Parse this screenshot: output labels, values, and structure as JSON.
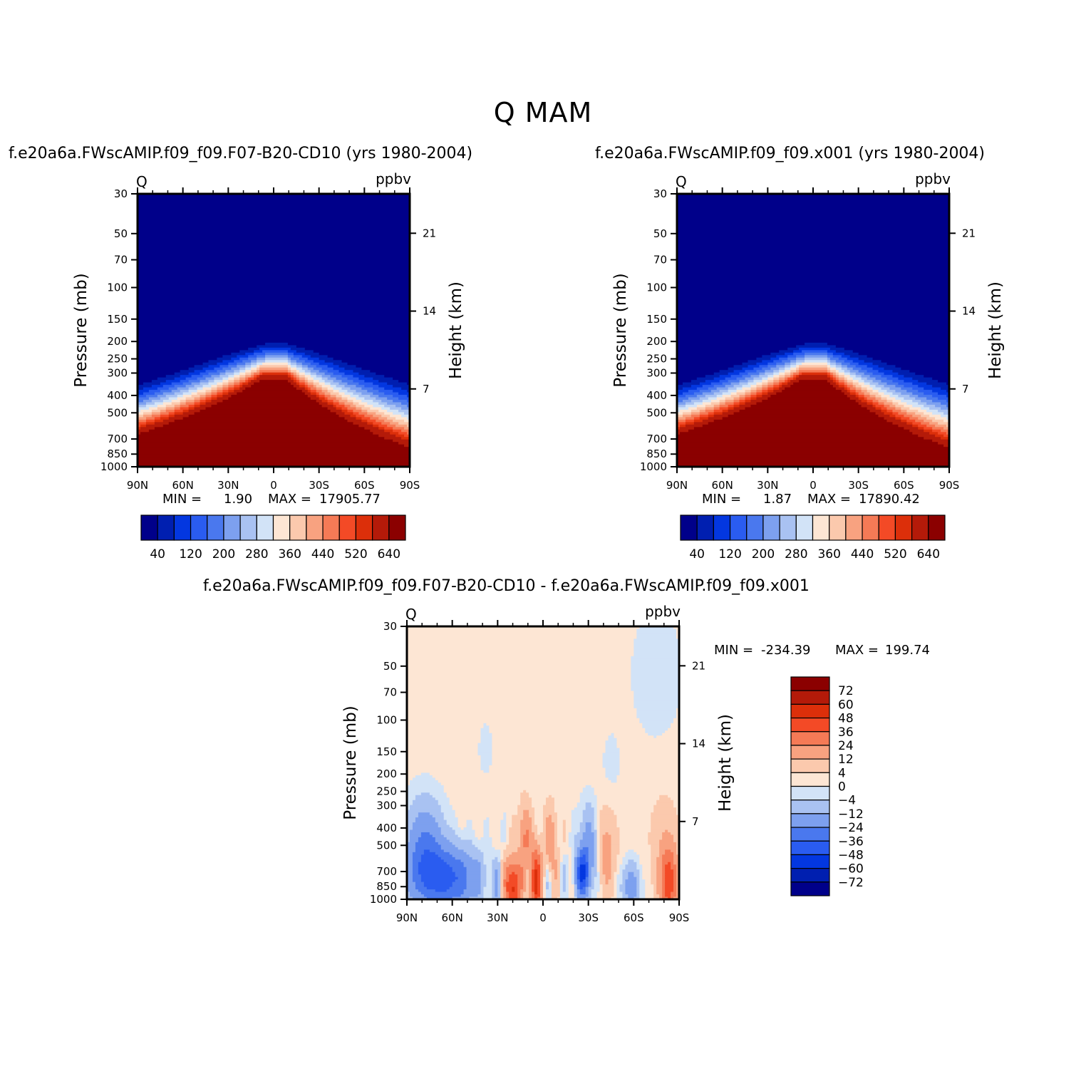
{
  "figure": {
    "title": "Q  MAM"
  },
  "palettes": {
    "absolute": [
      "#00008a",
      "#001fb0",
      "#0337e0",
      "#2a5cf0",
      "#4a78ee",
      "#7da0ef",
      "#a9c2f2",
      "#d2e3f7",
      "#fde6d4",
      "#fbc9ad",
      "#f8a280",
      "#f57a56",
      "#f34a26",
      "#dc2f0a",
      "#b41a09",
      "#8b0000"
    ],
    "difference": [
      "#8b0000",
      "#b41a09",
      "#dc2f0a",
      "#f34a26",
      "#f57a56",
      "#f8a280",
      "#fbc9ad",
      "#fde6d4",
      "#d2e3f7",
      "#a9c2f2",
      "#7da0ef",
      "#4a78ee",
      "#2a5cf0",
      "#0337e0",
      "#001fb0",
      "#00008a"
    ]
  },
  "chart_data": [
    {
      "type": "contour",
      "title": "f.e20a6a.FWscAMIP.f09_f09.F07-B20-CD10 (yrs 1980-2004)",
      "variable": "Q",
      "units": "ppbv",
      "ylabel": "Pressure (mb)",
      "ylabel_right": "Height (km)",
      "x_ticks": [
        "90N",
        "60N",
        "30N",
        "0",
        "30S",
        "60S",
        "90S"
      ],
      "x_range": [
        90,
        -90
      ],
      "y_ticks": [
        30,
        50,
        70,
        100,
        150,
        200,
        250,
        300,
        400,
        500,
        700,
        850,
        1000
      ],
      "y_range": [
        30,
        1000
      ],
      "y_scale": "log",
      "height_ticks": [
        21,
        14,
        7
      ],
      "min_label": "MIN =",
      "min_value": "1.90",
      "max_label": "MAX =",
      "max_value": "17905.77",
      "contour_levels": [
        40,
        80,
        120,
        160,
        200,
        240,
        280,
        320,
        360,
        400,
        440,
        480,
        520,
        560,
        640
      ],
      "colorbar_labels": [
        "40",
        "120",
        "200",
        "280",
        "360",
        "440",
        "520",
        "640"
      ]
    },
    {
      "type": "contour",
      "title": "f.e20a6a.FWscAMIP.f09_f09.x001 (yrs 1980-2004)",
      "variable": "Q",
      "units": "ppbv",
      "ylabel": "Pressure (mb)",
      "ylabel_right": "Height (km)",
      "x_ticks": [
        "90N",
        "60N",
        "30N",
        "0",
        "30S",
        "60S",
        "90S"
      ],
      "x_range": [
        90,
        -90
      ],
      "y_ticks": [
        30,
        50,
        70,
        100,
        150,
        200,
        250,
        300,
        400,
        500,
        700,
        850,
        1000
      ],
      "y_range": [
        30,
        1000
      ],
      "y_scale": "log",
      "height_ticks": [
        21,
        14,
        7
      ],
      "min_label": "MIN =",
      "min_value": "1.87",
      "max_label": "MAX =",
      "max_value": "17890.42",
      "contour_levels": [
        40,
        80,
        120,
        160,
        200,
        240,
        280,
        320,
        360,
        400,
        440,
        480,
        520,
        560,
        640
      ],
      "colorbar_labels": [
        "40",
        "120",
        "200",
        "280",
        "360",
        "440",
        "520",
        "640"
      ]
    },
    {
      "type": "contour",
      "title": "f.e20a6a.FWscAMIP.f09_f09.F07-B20-CD10 - f.e20a6a.FWscAMIP.f09_f09.x001",
      "variable": "Q",
      "units": "ppbv",
      "ylabel": "Pressure (mb)",
      "ylabel_right": "Height (km)",
      "x_ticks": [
        "90N",
        "60N",
        "30N",
        "0",
        "30S",
        "60S",
        "90S"
      ],
      "x_range": [
        90,
        -90
      ],
      "y_ticks": [
        30,
        50,
        70,
        100,
        150,
        200,
        250,
        300,
        400,
        500,
        700,
        850,
        1000
      ],
      "y_range": [
        30,
        1000
      ],
      "y_scale": "log",
      "height_ticks": [
        21,
        14,
        7
      ],
      "min_label": "MIN =",
      "min_value": "-234.39",
      "max_label": "MAX =",
      "max_value": "199.74",
      "contour_levels": [
        72,
        60,
        48,
        36,
        24,
        12,
        4,
        0,
        -4,
        -12,
        -24,
        -36,
        -48,
        -60,
        -72
      ],
      "colorbar_labels": [
        "72",
        "60",
        "48",
        "36",
        "24",
        "12",
        "4",
        "0",
        "−4",
        "−12",
        "−24",
        "−36",
        "−48",
        "−60",
        "−72"
      ]
    }
  ]
}
